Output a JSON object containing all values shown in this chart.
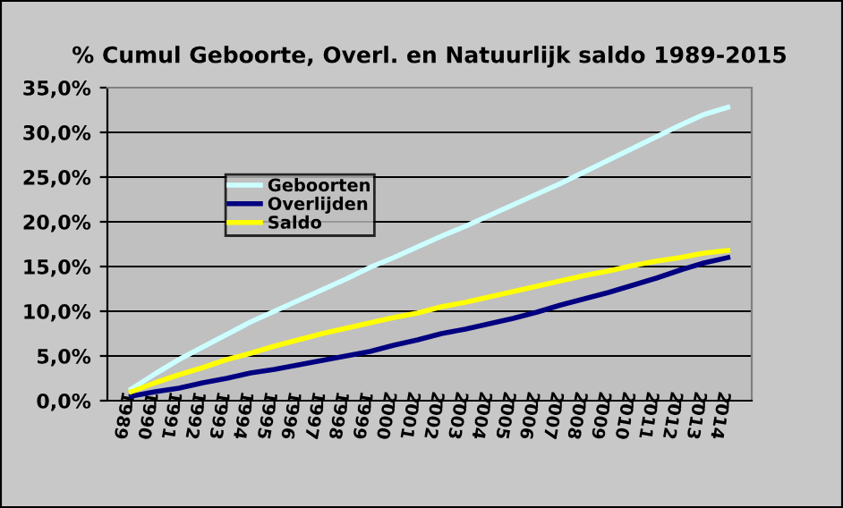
{
  "chart_data": {
    "type": "line",
    "title": "% Cumul Geboorte, Overl. en Natuurlijk saldo 1989-2015",
    "categories": [
      "1989",
      "1990",
      "1991",
      "1992",
      "1993",
      "1994",
      "1995",
      "1996",
      "1997",
      "1998",
      "1999",
      "2000",
      "2001",
      "2002",
      "2003",
      "2004",
      "2005",
      "2006",
      "2007",
      "2008",
      "2009",
      "2010",
      "2011",
      "2012",
      "2013",
      "2014"
    ],
    "series": [
      {
        "name": "Geboorten",
        "color": "#ccffff",
        "values": [
          1.3,
          3.0,
          4.6,
          6.0,
          7.4,
          8.8,
          10.0,
          11.2,
          12.4,
          13.6,
          14.9,
          16.0,
          17.2,
          18.4,
          19.5,
          20.7,
          21.9,
          23.1,
          24.3,
          25.6,
          26.9,
          28.2,
          29.5,
          30.8,
          32.0,
          32.8
        ]
      },
      {
        "name": "Overlijden",
        "color": "#000080",
        "values": [
          0.5,
          1.0,
          1.4,
          2.0,
          2.5,
          3.1,
          3.5,
          4.0,
          4.5,
          5.0,
          5.5,
          6.2,
          6.8,
          7.5,
          8.0,
          8.6,
          9.2,
          9.9,
          10.7,
          11.4,
          12.1,
          12.9,
          13.7,
          14.6,
          15.4,
          16.0
        ]
      },
      {
        "name": "Saldo",
        "color": "#ffff00",
        "values": [
          1.0,
          2.0,
          2.9,
          3.7,
          4.6,
          5.3,
          6.1,
          6.8,
          7.5,
          8.1,
          8.7,
          9.3,
          9.8,
          10.5,
          11.0,
          11.6,
          12.2,
          12.8,
          13.4,
          14.0,
          14.5,
          15.1,
          15.6,
          16.0,
          16.5,
          16.8
        ]
      }
    ],
    "ylim": [
      0,
      35
    ],
    "yticks": [
      {
        "value": 0,
        "label": "0,0%"
      },
      {
        "value": 5,
        "label": "5,0%"
      },
      {
        "value": 10,
        "label": "10,0%"
      },
      {
        "value": 15,
        "label": "15,0%"
      },
      {
        "value": 20,
        "label": "20,0%"
      },
      {
        "value": 25,
        "label": "25,0%"
      },
      {
        "value": 30,
        "label": "30,0%"
      },
      {
        "value": 35,
        "label": "35,0%"
      }
    ],
    "grid": "y",
    "legend": "top left",
    "marker": "none",
    "line_style": "solid"
  }
}
